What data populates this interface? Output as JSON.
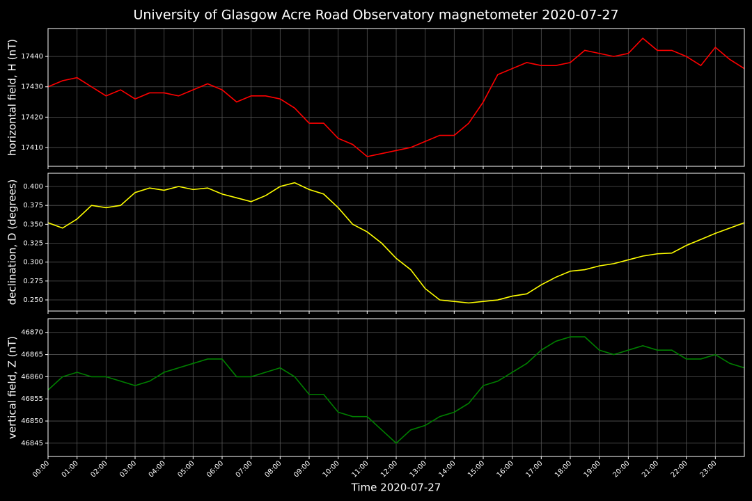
{
  "chart_data": [
    {
      "type": "line",
      "title": "University of Glasgow Acre Road Observatory magnetometer 2020-07-27",
      "ylabel": "horizontal field, H (nT)",
      "x": [
        0,
        0.5,
        1,
        1.5,
        2,
        2.5,
        3,
        3.5,
        4,
        4.5,
        5,
        5.5,
        6,
        6.5,
        7,
        7.5,
        8,
        8.5,
        9,
        9.5,
        10,
        10.5,
        11,
        11.5,
        12,
        12.5,
        13,
        13.5,
        14,
        14.5,
        15,
        15.5,
        16,
        16.5,
        17,
        17.5,
        18,
        18.5,
        19,
        19.5,
        20,
        20.5,
        21,
        21.5,
        22,
        22.5,
        23,
        23.5,
        24
      ],
      "values": [
        17430,
        17432,
        17433,
        17430,
        17427,
        17429,
        17426,
        17428,
        17428,
        17427,
        17429,
        17431,
        17429,
        17425,
        17427,
        17427,
        17426,
        17423,
        17418,
        17418,
        17413,
        17411,
        17407,
        17408,
        17409,
        17410,
        17412,
        17414,
        17414,
        17418,
        17425,
        17434,
        17436,
        17438,
        17437,
        17437,
        17438,
        17442,
        17441,
        17440,
        17441,
        17446,
        17442,
        17442,
        17440,
        17437,
        17443,
        17439,
        17436
      ],
      "color": "#ff0000",
      "xlim": [
        0,
        24
      ],
      "ylim": [
        17403.8,
        17449.2
      ],
      "yticks": [
        17410,
        17420,
        17430,
        17440
      ],
      "grid": true
    },
    {
      "type": "line",
      "ylabel": "declination, D (degrees)",
      "x": [
        0,
        0.5,
        1,
        1.5,
        2,
        2.5,
        3,
        3.5,
        4,
        4.5,
        5,
        5.5,
        6,
        6.5,
        7,
        7.5,
        8,
        8.5,
        9,
        9.5,
        10,
        10.5,
        11,
        11.5,
        12,
        12.5,
        13,
        13.5,
        14,
        14.5,
        15,
        15.5,
        16,
        16.5,
        17,
        17.5,
        18,
        18.5,
        19,
        19.5,
        20,
        20.5,
        21,
        21.5,
        22,
        22.5,
        23,
        23.5,
        24
      ],
      "values": [
        0.352,
        0.345,
        0.357,
        0.375,
        0.372,
        0.375,
        0.392,
        0.398,
        0.395,
        0.4,
        0.396,
        0.398,
        0.39,
        0.385,
        0.38,
        0.388,
        0.4,
        0.405,
        0.396,
        0.39,
        0.372,
        0.35,
        0.34,
        0.325,
        0.305,
        0.29,
        0.265,
        0.25,
        0.248,
        0.246,
        0.248,
        0.25,
        0.255,
        0.258,
        0.27,
        0.28,
        0.288,
        0.29,
        0.295,
        0.298,
        0.303,
        0.308,
        0.311,
        0.312,
        0.322,
        0.33,
        0.338,
        0.345,
        0.352
      ],
      "color": "#ffff00",
      "xlim": [
        0,
        24
      ],
      "ylim": [
        0.2353,
        0.4175
      ],
      "yticks": [
        {
          "value": 0.25,
          "label": "0.250"
        },
        {
          "value": 0.275,
          "label": "0.275"
        },
        {
          "value": 0.3,
          "label": "0.300"
        },
        {
          "value": 0.325,
          "label": "0.325"
        },
        {
          "value": 0.35,
          "label": "0.350"
        },
        {
          "value": 0.375,
          "label": "0.375"
        },
        {
          "value": 0.4,
          "label": "0.400"
        }
      ],
      "grid": true
    },
    {
      "type": "line",
      "ylabel": "vertical field, Z (nT)",
      "xlabel": "Time 2020-07-27",
      "x": [
        0,
        0.5,
        1,
        1.5,
        2,
        2.5,
        3,
        3.5,
        4,
        4.5,
        5,
        5.5,
        6,
        6.5,
        7,
        7.5,
        8,
        8.5,
        9,
        9.5,
        10,
        10.5,
        11,
        11.5,
        12,
        12.5,
        13,
        13.5,
        14,
        14.5,
        15,
        15.5,
        16,
        16.5,
        17,
        17.5,
        18,
        18.5,
        19,
        19.5,
        20,
        20.5,
        21,
        21.5,
        22,
        22.5,
        23,
        23.5,
        24
      ],
      "values": [
        46857,
        46860,
        46861,
        46860,
        46860,
        46859,
        46858,
        46859,
        46861,
        46862,
        46863,
        46864,
        46864,
        46860,
        46860,
        46861,
        46862,
        46860,
        46856,
        46856,
        46852,
        46851,
        46851,
        46848,
        46845,
        46848,
        46849,
        46851,
        46852,
        46854,
        46858,
        46859,
        46861,
        46863,
        46866,
        46868,
        46869,
        46869,
        46866,
        46865,
        46866,
        46867,
        46866,
        46866,
        46864,
        46864,
        46865,
        46863,
        46862
      ],
      "color": "#008000",
      "xlim": [
        0,
        24
      ],
      "ylim": [
        46842.0,
        46873.1
      ],
      "yticks": [
        46845,
        46850,
        46855,
        46860,
        46865,
        46870
      ],
      "xticks": [
        {
          "value": 0,
          "label": "00:00"
        },
        {
          "value": 1,
          "label": "01:00"
        },
        {
          "value": 2,
          "label": "02:00"
        },
        {
          "value": 3,
          "label": "03:00"
        },
        {
          "value": 4,
          "label": "04:00"
        },
        {
          "value": 5,
          "label": "05:00"
        },
        {
          "value": 6,
          "label": "06:00"
        },
        {
          "value": 7,
          "label": "07:00"
        },
        {
          "value": 8,
          "label": "08:00"
        },
        {
          "value": 9,
          "label": "09:00"
        },
        {
          "value": 10,
          "label": "10:00"
        },
        {
          "value": 11,
          "label": "11:00"
        },
        {
          "value": 12,
          "label": "12:00"
        },
        {
          "value": 13,
          "label": "13:00"
        },
        {
          "value": 14,
          "label": "14:00"
        },
        {
          "value": 15,
          "label": "15:00"
        },
        {
          "value": 16,
          "label": "16:00"
        },
        {
          "value": 17,
          "label": "17:00"
        },
        {
          "value": 18,
          "label": "18:00"
        },
        {
          "value": 19,
          "label": "19:00"
        },
        {
          "value": 20,
          "label": "20:00"
        },
        {
          "value": 21,
          "label": "21:00"
        },
        {
          "value": 22,
          "label": "22:00"
        },
        {
          "value": 23,
          "label": "23:00"
        }
      ],
      "grid": true
    }
  ]
}
